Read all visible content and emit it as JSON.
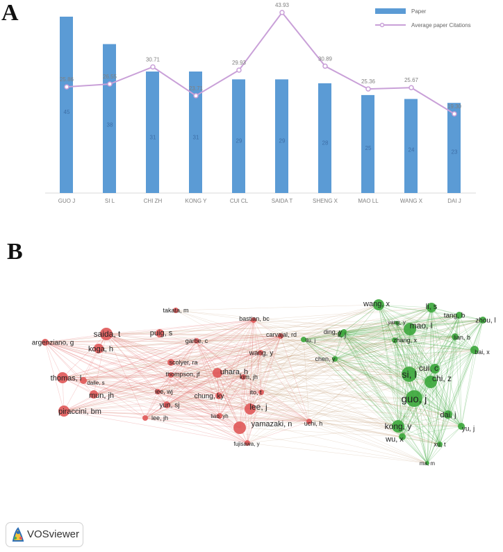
{
  "panel_a_label": "A",
  "panel_b_label": "B",
  "chart_data": [
    {
      "type": "bar",
      "categories": [
        "GUO J",
        "SI L",
        "CHI ZH",
        "KONG Y",
        "CUI CL",
        "SAIDA T",
        "SHENG X",
        "MAO LL",
        "WANG X",
        "DAI J"
      ],
      "series": [
        {
          "name": "Paper",
          "type": "bar",
          "values": [
            45,
            38,
            31,
            31,
            29,
            29,
            28,
            25,
            24,
            23
          ],
          "color": "#5b9bd5"
        },
        {
          "name": "Average paper Citations",
          "type": "line",
          "values": [
            25.86,
            26.55,
            30.71,
            23.71,
            29.93,
            43.93,
            30.89,
            25.36,
            25.67,
            19.3
          ],
          "color": "#c9a0d8",
          "labels": [
            "25.86",
            "26.55",
            "30.71",
            "23.71",
            "29.93",
            "43.93",
            "30.89",
            "25.36",
            "25.67",
            "19.30"
          ]
        }
      ],
      "legend": "top-right",
      "grid": false
    },
    {
      "type": "network",
      "clusters": {
        "red": "#e05a5a",
        "green": "#3ea83e"
      },
      "nodes": [
        {
          "label": "takata, m",
          "cluster": "red"
        },
        {
          "label": "bastian, bc",
          "cluster": "red"
        },
        {
          "label": "saida, t",
          "cluster": "red"
        },
        {
          "label": "puig, s",
          "cluster": "red"
        },
        {
          "label": "carvajal, rd",
          "cluster": "red"
        },
        {
          "label": "argenziano, g",
          "cluster": "red"
        },
        {
          "label": "koga, h",
          "cluster": "red"
        },
        {
          "label": "garbe, c",
          "cluster": "red"
        },
        {
          "label": "wang, y",
          "cluster": "red"
        },
        {
          "label": "scolyer, ra",
          "cluster": "red"
        },
        {
          "label": "thomas, l",
          "cluster": "red"
        },
        {
          "label": "thompson, jf",
          "cluster": "red"
        },
        {
          "label": "dalle, s",
          "cluster": "red"
        },
        {
          "label": "uhara, h",
          "cluster": "red"
        },
        {
          "label": "kim, jh",
          "cluster": "red"
        },
        {
          "label": "mun, jh",
          "cluster": "red"
        },
        {
          "label": "lee, wj",
          "cluster": "red"
        },
        {
          "label": "ito, t",
          "cluster": "red"
        },
        {
          "label": "chung, ky",
          "cluster": "red"
        },
        {
          "label": "piraccini, bm",
          "cluster": "red"
        },
        {
          "label": "yun, sj",
          "cluster": "red"
        },
        {
          "label": "lee, j",
          "cluster": "red"
        },
        {
          "label": "lee, jh",
          "cluster": "red"
        },
        {
          "label": "liao, yh",
          "cluster": "red"
        },
        {
          "label": "yamazaki, n",
          "cluster": "red"
        },
        {
          "label": "uchi, h",
          "cluster": "red"
        },
        {
          "label": "fujisawa, y",
          "cluster": "red"
        },
        {
          "label": "wang, x",
          "cluster": "green"
        },
        {
          "label": "li, s",
          "cluster": "green"
        },
        {
          "label": "yang, y",
          "cluster": "green"
        },
        {
          "label": "tang, b",
          "cluster": "green"
        },
        {
          "label": "ding, y",
          "cluster": "green"
        },
        {
          "label": "mao, l",
          "cluster": "green"
        },
        {
          "label": "zhou, l",
          "cluster": "green"
        },
        {
          "label": "zhang, x",
          "cluster": "green"
        },
        {
          "label": "lian, b",
          "cluster": "green"
        },
        {
          "label": "liu, j",
          "cluster": "green"
        },
        {
          "label": "li, j",
          "cluster": "green"
        },
        {
          "label": "bai, x",
          "cluster": "green"
        },
        {
          "label": "chen, y",
          "cluster": "green"
        },
        {
          "label": "cui, c",
          "cluster": "green"
        },
        {
          "label": "si, l",
          "cluster": "green"
        },
        {
          "label": "chi, z",
          "cluster": "green"
        },
        {
          "label": "guo, j",
          "cluster": "green"
        },
        {
          "label": "dai, j",
          "cluster": "green"
        },
        {
          "label": "kong, y",
          "cluster": "green"
        },
        {
          "label": "yu, j",
          "cluster": "green"
        },
        {
          "label": "wu, x",
          "cluster": "green"
        },
        {
          "label": "xu, t",
          "cluster": "green"
        },
        {
          "label": "ma, m",
          "cluster": "green"
        }
      ]
    }
  ],
  "logo": {
    "text": "VOSviewer"
  }
}
